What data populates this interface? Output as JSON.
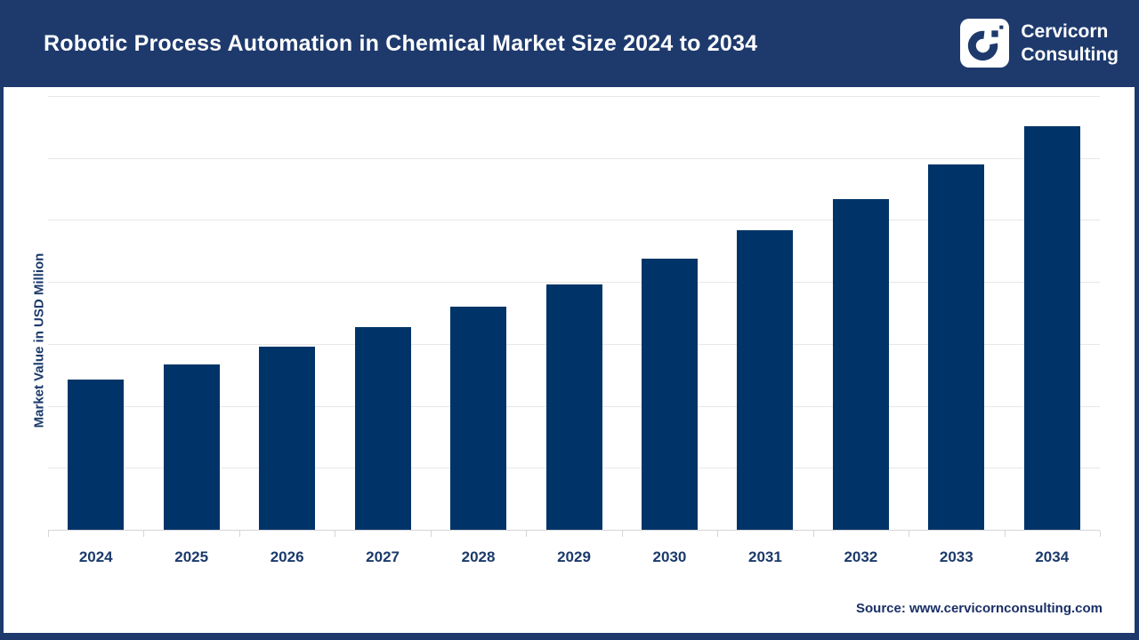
{
  "header": {
    "title": "Robotic Process Automation in Chemical Market Size 2024 to 2034",
    "logo": {
      "line1": "Cervicorn",
      "line2": "Consulting"
    }
  },
  "chart_data": {
    "type": "bar",
    "title": "Robotic Process Automation in Chemical Market Size 2024 to 2034",
    "categories": [
      "2024",
      "2025",
      "2026",
      "2027",
      "2028",
      "2029",
      "2030",
      "2031",
      "2032",
      "2033",
      "2034"
    ],
    "values": [
      1215,
      1335,
      1475,
      1635,
      1800,
      1980,
      2190,
      2420,
      2670,
      2945,
      3255
    ],
    "ylabel": "Market Value in USD Million",
    "xlabel": "",
    "ylim": [
      0,
      3500
    ],
    "grid_step": 500,
    "grid": true,
    "legend": false,
    "y_tick_labels_visible": false,
    "note": "values estimated from bar heights against unlabeled gridlines"
  },
  "footer": {
    "source": "Source: www.cervicornconsulting.com"
  },
  "colors": {
    "header_navy": "#1e3a6d",
    "bar_navy": "#003468",
    "label_navy": "#1b3a6b",
    "gridline": "#e7e7e7",
    "axis": "#d6d6d6",
    "white": "#ffffff"
  }
}
